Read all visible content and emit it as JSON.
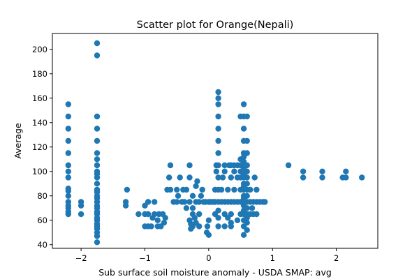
{
  "chart_data": {
    "type": "scatter",
    "title": "Scatter plot for Orange(Nepali)",
    "xlabel": "Sub surface soil moisture anomaly - USDA SMAP: avg",
    "ylabel": "Average",
    "xlim": [
      -2.45,
      2.65
    ],
    "ylim": [
      37,
      213
    ],
    "xticks": [
      -2,
      -1,
      0,
      1,
      2
    ],
    "yticks": [
      40,
      60,
      80,
      100,
      120,
      140,
      160,
      180,
      200
    ],
    "grid": false,
    "legend": "none",
    "color": "#1f77b4",
    "points": [
      [
        -2.2,
        65
      ],
      [
        -2.2,
        67
      ],
      [
        -2.2,
        70
      ],
      [
        -2.2,
        72
      ],
      [
        -2.2,
        75
      ],
      [
        -2.2,
        80
      ],
      [
        -2.2,
        84
      ],
      [
        -2.2,
        86
      ],
      [
        -2.2,
        95
      ],
      [
        -2.2,
        100
      ],
      [
        -2.2,
        105
      ],
      [
        -2.2,
        115
      ],
      [
        -2.2,
        125
      ],
      [
        -2.2,
        135
      ],
      [
        -2.2,
        145
      ],
      [
        -2.2,
        155
      ],
      [
        -2.0,
        65
      ],
      [
        -2.0,
        72
      ],
      [
        -2.0,
        75
      ],
      [
        -1.75,
        42
      ],
      [
        -1.75,
        47
      ],
      [
        -1.75,
        50
      ],
      [
        -1.75,
        53
      ],
      [
        -1.75,
        55
      ],
      [
        -1.75,
        57
      ],
      [
        -1.75,
        60
      ],
      [
        -1.75,
        62
      ],
      [
        -1.75,
        65
      ],
      [
        -1.75,
        67
      ],
      [
        -1.75,
        70
      ],
      [
        -1.75,
        72
      ],
      [
        -1.75,
        75
      ],
      [
        -1.75,
        78
      ],
      [
        -1.75,
        80
      ],
      [
        -1.75,
        83
      ],
      [
        -1.75,
        85
      ],
      [
        -1.75,
        90
      ],
      [
        -1.75,
        95
      ],
      [
        -1.75,
        98
      ],
      [
        -1.75,
        100
      ],
      [
        -1.75,
        105
      ],
      [
        -1.75,
        110
      ],
      [
        -1.75,
        115
      ],
      [
        -1.75,
        125
      ],
      [
        -1.75,
        135
      ],
      [
        -1.75,
        145
      ],
      [
        -1.75,
        195
      ],
      [
        -1.75,
        205
      ],
      [
        -1.3,
        72
      ],
      [
        -1.3,
        75
      ],
      [
        -1.28,
        85
      ],
      [
        -1.1,
        65
      ],
      [
        -1.0,
        55
      ],
      [
        -1.0,
        65
      ],
      [
        -1.0,
        72
      ],
      [
        -0.95,
        55
      ],
      [
        -0.95,
        65
      ],
      [
        -0.95,
        75
      ],
      [
        -0.9,
        55
      ],
      [
        -0.88,
        62
      ],
      [
        -0.85,
        65
      ],
      [
        -0.85,
        75
      ],
      [
        -0.8,
        55
      ],
      [
        -0.8,
        60
      ],
      [
        -0.78,
        65
      ],
      [
        -0.75,
        55
      ],
      [
        -0.72,
        65
      ],
      [
        -0.7,
        58
      ],
      [
        -0.68,
        62
      ],
      [
        -0.65,
        85
      ],
      [
        -0.62,
        95
      ],
      [
        -0.6,
        85
      ],
      [
        -0.6,
        105
      ],
      [
        -0.55,
        75
      ],
      [
        -0.5,
        75
      ],
      [
        -0.5,
        85
      ],
      [
        -0.48,
        80
      ],
      [
        -0.45,
        95
      ],
      [
        -0.42,
        75
      ],
      [
        -0.4,
        85
      ],
      [
        -0.38,
        75
      ],
      [
        -0.35,
        70
      ],
      [
        -0.35,
        85
      ],
      [
        -0.3,
        60
      ],
      [
        -0.3,
        75
      ],
      [
        -0.3,
        95
      ],
      [
        -0.3,
        105
      ],
      [
        -0.28,
        53
      ],
      [
        -0.28,
        57
      ],
      [
        -0.25,
        55
      ],
      [
        -0.25,
        65
      ],
      [
        -0.25,
        70
      ],
      [
        -0.25,
        80
      ],
      [
        -0.22,
        62
      ],
      [
        -0.2,
        58
      ],
      [
        -0.2,
        75
      ],
      [
        -0.2,
        88
      ],
      [
        -0.18,
        92
      ],
      [
        -0.15,
        55
      ],
      [
        -0.15,
        65
      ],
      [
        -0.15,
        75
      ],
      [
        -0.12,
        80
      ],
      [
        -0.1,
        85
      ],
      [
        -0.08,
        75
      ],
      [
        -0.05,
        75
      ],
      [
        -0.03,
        50
      ],
      [
        -0.02,
        55
      ],
      [
        0.0,
        48
      ],
      [
        0.0,
        60
      ],
      [
        0.0,
        75
      ],
      [
        0.02,
        75
      ],
      [
        0.05,
        75
      ],
      [
        0.08,
        75
      ],
      [
        0.1,
        65
      ],
      [
        0.1,
        75
      ],
      [
        0.1,
        85
      ],
      [
        0.12,
        100
      ],
      [
        0.12,
        105
      ],
      [
        0.15,
        55
      ],
      [
        0.15,
        62
      ],
      [
        0.15,
        68
      ],
      [
        0.15,
        75
      ],
      [
        0.15,
        85
      ],
      [
        0.15,
        95
      ],
      [
        0.15,
        105
      ],
      [
        0.15,
        115
      ],
      [
        0.15,
        125
      ],
      [
        0.15,
        135
      ],
      [
        0.15,
        145
      ],
      [
        0.15,
        155
      ],
      [
        0.15,
        160
      ],
      [
        0.15,
        165
      ],
      [
        0.2,
        75
      ],
      [
        0.2,
        85
      ],
      [
        0.22,
        95
      ],
      [
        0.25,
        55
      ],
      [
        0.25,
        65
      ],
      [
        0.25,
        75
      ],
      [
        0.25,
        100
      ],
      [
        0.25,
        105
      ],
      [
        0.3,
        62
      ],
      [
        0.3,
        75
      ],
      [
        0.3,
        85
      ],
      [
        0.32,
        105
      ],
      [
        0.35,
        55
      ],
      [
        0.35,
        58
      ],
      [
        0.35,
        65
      ],
      [
        0.35,
        75
      ],
      [
        0.35,
        95
      ],
      [
        0.35,
        105
      ],
      [
        0.4,
        75
      ],
      [
        0.4,
        85
      ],
      [
        0.4,
        100
      ],
      [
        0.4,
        105
      ],
      [
        0.45,
        60
      ],
      [
        0.45,
        75
      ],
      [
        0.45,
        95
      ],
      [
        0.45,
        105
      ],
      [
        0.5,
        65
      ],
      [
        0.5,
        75
      ],
      [
        0.5,
        85
      ],
      [
        0.5,
        95
      ],
      [
        0.5,
        100
      ],
      [
        0.5,
        105
      ],
      [
        0.5,
        110
      ],
      [
        0.5,
        145
      ],
      [
        0.55,
        48
      ],
      [
        0.55,
        55
      ],
      [
        0.55,
        60
      ],
      [
        0.55,
        65
      ],
      [
        0.55,
        68
      ],
      [
        0.55,
        72
      ],
      [
        0.55,
        75
      ],
      [
        0.55,
        78
      ],
      [
        0.55,
        80
      ],
      [
        0.55,
        85
      ],
      [
        0.55,
        88
      ],
      [
        0.55,
        90
      ],
      [
        0.55,
        95
      ],
      [
        0.55,
        98
      ],
      [
        0.55,
        100
      ],
      [
        0.55,
        103
      ],
      [
        0.55,
        105
      ],
      [
        0.55,
        108
      ],
      [
        0.55,
        112
      ],
      [
        0.55,
        115
      ],
      [
        0.55,
        125
      ],
      [
        0.55,
        135
      ],
      [
        0.55,
        145
      ],
      [
        0.55,
        155
      ],
      [
        0.6,
        52
      ],
      [
        0.6,
        58
      ],
      [
        0.6,
        62
      ],
      [
        0.6,
        65
      ],
      [
        0.6,
        70
      ],
      [
        0.6,
        75
      ],
      [
        0.6,
        80
      ],
      [
        0.6,
        85
      ],
      [
        0.6,
        90
      ],
      [
        0.6,
        95
      ],
      [
        0.6,
        100
      ],
      [
        0.6,
        105
      ],
      [
        0.6,
        115
      ],
      [
        0.6,
        125
      ],
      [
        0.6,
        145
      ],
      [
        0.65,
        65
      ],
      [
        0.65,
        75
      ],
      [
        0.65,
        85
      ],
      [
        0.68,
        70
      ],
      [
        0.7,
        65
      ],
      [
        0.7,
        75
      ],
      [
        0.72,
        95
      ],
      [
        0.75,
        65
      ],
      [
        0.75,
        75
      ],
      [
        0.75,
        85
      ],
      [
        0.8,
        75
      ],
      [
        0.85,
        75
      ],
      [
        0.88,
        75
      ],
      [
        1.25,
        105
      ],
      [
        1.48,
        95
      ],
      [
        1.48,
        100
      ],
      [
        1.78,
        95
      ],
      [
        1.78,
        100
      ],
      [
        2.1,
        95
      ],
      [
        2.15,
        95
      ],
      [
        2.15,
        100
      ],
      [
        2.4,
        95
      ]
    ]
  }
}
